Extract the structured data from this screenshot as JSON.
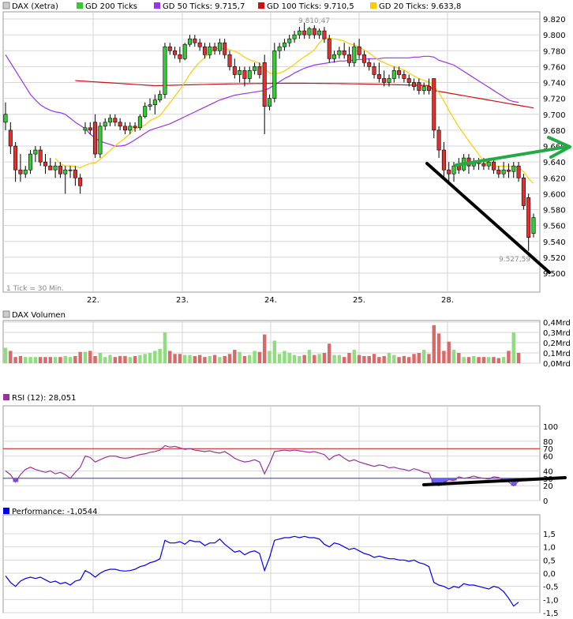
{
  "colors": {
    "up": "#33cc33",
    "down": "#e03030",
    "vol_up": "#90dd80",
    "vol_down": "#d86a6a",
    "gd200": "#33cc33",
    "gd50": "#9933ee",
    "gd100": "#cc1111",
    "gd20": "#ffcc00",
    "rsi_line": "#993399",
    "rsi_fill": "#6666ff",
    "perf_line": "#0000ee",
    "trend_green": "#22aa44",
    "trend_black": "#000000",
    "grid": "#d6d6d6"
  },
  "legend": [
    {
      "label": "DAX (Xetra)",
      "color": "#cccccc"
    },
    {
      "label": "GD 200 Ticks",
      "color": "#33cc33"
    },
    {
      "label": "GD 50 Ticks: 9.715,7",
      "color": "#9933ee"
    },
    {
      "label": "GD 100 Ticks: 9.710,5",
      "color": "#cc1111"
    },
    {
      "label": "GD 20 Ticks: 9.633,8",
      "color": "#ffcc00"
    }
  ],
  "notes": {
    "high_label": "9.810,47",
    "low_label": "9.527,59",
    "tick_note": "1 Tick = 30 Min."
  },
  "x_labels": [
    "22.",
    "23.",
    "24.",
    "25.",
    "28."
  ],
  "panels": {
    "volume": {
      "title": "DAX Volumen",
      "swatch": "#cccccc"
    },
    "rsi": {
      "title": "RSI (12): 28,051",
      "swatch": "#993399"
    },
    "perf": {
      "title": "Performance: -1,0544",
      "swatch": "#0000ee"
    }
  },
  "chart_data": [
    {
      "type": "candlestick",
      "title": "DAX (Xetra)",
      "yticks": [
        "9.820",
        "9.800",
        "9.780",
        "9.760",
        "9.740",
        "9.720",
        "9.700",
        "9.680",
        "9.660",
        "9.640",
        "9.620",
        "9.600",
        "9.580",
        "9.560",
        "9.540",
        "9.520",
        "9.500"
      ],
      "ylim": [
        9500,
        9830
      ],
      "x": [
        "22.",
        "23.",
        "24.",
        "25.",
        "28."
      ],
      "candles": [
        [
          9690,
          9715,
          9680,
          9700
        ],
        [
          9680,
          9690,
          9650,
          9660
        ],
        [
          9660,
          9665,
          9615,
          9630
        ],
        [
          9630,
          9650,
          9615,
          9625
        ],
        [
          9625,
          9635,
          9620,
          9630
        ],
        [
          9630,
          9655,
          9625,
          9650
        ],
        [
          9650,
          9660,
          9640,
          9655
        ],
        [
          9655,
          9660,
          9635,
          9640
        ],
        [
          9640,
          9650,
          9625,
          9635
        ],
        [
          9635,
          9645,
          9630,
          9630
        ],
        [
          9630,
          9640,
          9620,
          9635
        ],
        [
          9635,
          9640,
          9620,
          9625
        ],
        [
          9625,
          9635,
          9600,
          9630
        ],
        [
          9630,
          9635,
          9620,
          9630
        ],
        [
          9630,
          9635,
          9610,
          9620
        ],
        [
          9620,
          9625,
          9600,
          9610
        ],
        [
          9680,
          9690,
          9675,
          9683
        ],
        [
          9683,
          9690,
          9675,
          9680
        ],
        [
          9690,
          9700,
          9645,
          9650
        ],
        [
          9650,
          9690,
          9645,
          9685
        ],
        [
          9685,
          9695,
          9680,
          9690
        ],
        [
          9690,
          9700,
          9685,
          9695
        ],
        [
          9695,
          9700,
          9685,
          9690
        ],
        [
          9690,
          9695,
          9680,
          9685
        ],
        [
          9685,
          9690,
          9675,
          9680
        ],
        [
          9680,
          9690,
          9675,
          9685
        ],
        [
          9685,
          9690,
          9678,
          9683
        ],
        [
          9683,
          9700,
          9680,
          9697
        ],
        [
          9697,
          9715,
          9695,
          9710
        ],
        [
          9710,
          9720,
          9705,
          9712
        ],
        [
          9712,
          9725,
          9700,
          9718
        ],
        [
          9718,
          9730,
          9715,
          9725
        ],
        [
          9725,
          9790,
          9720,
          9785
        ],
        [
          9785,
          9790,
          9775,
          9780
        ],
        [
          9780,
          9785,
          9770,
          9775
        ],
        [
          9775,
          9785,
          9765,
          9770
        ],
        [
          9770,
          9790,
          9768,
          9788
        ],
        [
          9788,
          9800,
          9785,
          9795
        ],
        [
          9795,
          9800,
          9785,
          9790
        ],
        [
          9790,
          9795,
          9780,
          9785
        ],
        [
          9785,
          9790,
          9770,
          9775
        ],
        [
          9775,
          9790,
          9770,
          9785
        ],
        [
          9785,
          9790,
          9775,
          9780
        ],
        [
          9780,
          9795,
          9775,
          9790
        ],
        [
          9790,
          9795,
          9770,
          9775
        ],
        [
          9775,
          9780,
          9755,
          9760
        ],
        [
          9760,
          9770,
          9745,
          9750
        ],
        [
          9750,
          9760,
          9740,
          9755
        ],
        [
          9755,
          9760,
          9735,
          9745
        ],
        [
          9745,
          9760,
          9740,
          9755
        ],
        [
          9755,
          9765,
          9750,
          9760
        ],
        [
          9760,
          9765,
          9745,
          9750
        ],
        [
          9765,
          9775,
          9675,
          9710
        ],
        [
          9710,
          9725,
          9705,
          9720
        ],
        [
          9720,
          9790,
          9715,
          9780
        ],
        [
          9780,
          9790,
          9770,
          9785
        ],
        [
          9785,
          9795,
          9780,
          9790
        ],
        [
          9790,
          9800,
          9785,
          9795
        ],
        [
          9795,
          9805,
          9790,
          9800
        ],
        [
          9800,
          9810,
          9795,
          9805
        ],
        [
          9805,
          9815,
          9795,
          9800
        ],
        [
          9800,
          9810,
          9795,
          9808
        ],
        [
          9808,
          9812,
          9795,
          9800
        ],
        [
          9800,
          9808,
          9795,
          9805
        ],
        [
          9805,
          9810,
          9790,
          9795
        ],
        [
          9795,
          9800,
          9765,
          9770
        ],
        [
          9770,
          9780,
          9765,
          9775
        ],
        [
          9775,
          9785,
          9770,
          9780
        ],
        [
          9780,
          9790,
          9770,
          9775
        ],
        [
          9775,
          9785,
          9760,
          9765
        ],
        [
          9765,
          9790,
          9760,
          9785
        ],
        [
          9785,
          9795,
          9770,
          9775
        ],
        [
          9775,
          9780,
          9760,
          9765
        ],
        [
          9765,
          9770,
          9755,
          9760
        ],
        [
          9760,
          9765,
          9745,
          9750
        ],
        [
          9750,
          9765,
          9740,
          9745
        ],
        [
          9745,
          9755,
          9735,
          9740
        ],
        [
          9740,
          9750,
          9735,
          9745
        ],
        [
          9745,
          9760,
          9740,
          9755
        ],
        [
          9755,
          9760,
          9745,
          9750
        ],
        [
          9750,
          9755,
          9740,
          9745
        ],
        [
          9745,
          9750,
          9735,
          9740
        ],
        [
          9740,
          9745,
          9730,
          9735
        ],
        [
          9740,
          9745,
          9725,
          9730
        ],
        [
          9730,
          9740,
          9725,
          9735
        ],
        [
          9735,
          9745,
          9725,
          9730
        ],
        [
          9745,
          9745,
          9670,
          9680
        ],
        [
          9680,
          9685,
          9645,
          9655
        ],
        [
          9655,
          9665,
          9620,
          9630
        ],
        [
          9630,
          9640,
          9615,
          9625
        ],
        [
          9625,
          9640,
          9615,
          9635
        ],
        [
          9635,
          9645,
          9625,
          9630
        ],
        [
          9630,
          9650,
          9628,
          9645
        ],
        [
          9645,
          9650,
          9625,
          9635
        ],
        [
          9635,
          9645,
          9630,
          9640
        ],
        [
          9640,
          9645,
          9630,
          9638
        ],
        [
          9638,
          9645,
          9630,
          9635
        ],
        [
          9635,
          9645,
          9630,
          9640
        ],
        [
          9640,
          9645,
          9625,
          9630
        ],
        [
          9630,
          9635,
          9620,
          9625
        ],
        [
          9625,
          9640,
          9620,
          9630
        ],
        [
          9630,
          9638,
          9620,
          9628
        ],
        [
          9628,
          9640,
          9620,
          9635
        ],
        [
          9635,
          9640,
          9615,
          9620
        ],
        [
          9620,
          9625,
          9580,
          9585
        ],
        [
          9595,
          9600,
          9528,
          9545
        ],
        [
          9550,
          9575,
          9545,
          9570
        ]
      ]
    },
    {
      "type": "bar",
      "title": "DAX Volumen",
      "yticks": [
        "0,4Mrd",
        "0,3Mrd",
        "0,2Mrd",
        "0,1Mrd",
        "0,0Mrd"
      ],
      "ylim": [
        0,
        0.4
      ],
      "values": [
        0.15,
        0.12,
        0.06,
        0.07,
        0.06,
        0.06,
        0.06,
        0.06,
        0.06,
        0.06,
        0.06,
        0.06,
        0.07,
        0.06,
        0.07,
        0.11,
        0.11,
        0.12,
        0.07,
        0.1,
        0.06,
        0.08,
        0.06,
        0.07,
        0.07,
        0.06,
        0.07,
        0.08,
        0.09,
        0.1,
        0.12,
        0.14,
        0.3,
        0.12,
        0.09,
        0.09,
        0.08,
        0.08,
        0.07,
        0.08,
        0.06,
        0.07,
        0.08,
        0.06,
        0.07,
        0.09,
        0.13,
        0.11,
        0.07,
        0.08,
        0.12,
        0.11,
        0.28,
        0.12,
        0.22,
        0.09,
        0.12,
        0.1,
        0.08,
        0.07,
        0.08,
        0.13,
        0.08,
        0.09,
        0.1,
        0.19,
        0.08,
        0.08,
        0.06,
        0.1,
        0.13,
        0.08,
        0.07,
        0.07,
        0.09,
        0.06,
        0.07,
        0.1,
        0.08,
        0.06,
        0.07,
        0.06,
        0.09,
        0.1,
        0.13,
        0.09,
        0.37,
        0.29,
        0.12,
        0.21,
        0.13,
        0.1,
        0.06,
        0.06,
        0.07,
        0.06,
        0.06,
        0.06,
        0.06,
        0.05,
        0.06,
        0.12,
        0.3,
        0.1
      ]
    },
    {
      "type": "line",
      "title": "RSI (12): 28,051",
      "yticks": [
        "100",
        "80",
        "70",
        "60",
        "40",
        "30",
        "20",
        "0"
      ],
      "ylim": [
        0,
        100
      ],
      "values": [
        40,
        35,
        25,
        35,
        42,
        45,
        42,
        40,
        38,
        40,
        36,
        38,
        35,
        30,
        38,
        45,
        60,
        58,
        52,
        55,
        58,
        60,
        60,
        58,
        57,
        58,
        60,
        62,
        63,
        65,
        66,
        68,
        74,
        72,
        73,
        71,
        69,
        70,
        68,
        67,
        66,
        67,
        65,
        64,
        66,
        62,
        57,
        54,
        52,
        53,
        55,
        52,
        36,
        50,
        66,
        67,
        68,
        67,
        68,
        67,
        66,
        65,
        66,
        64,
        62,
        55,
        60,
        62,
        57,
        53,
        55,
        52,
        50,
        48,
        46,
        48,
        47,
        44,
        45,
        43,
        42,
        40,
        43,
        41,
        38,
        37,
        22,
        20,
        25,
        28,
        27,
        32,
        30,
        31,
        33,
        31,
        30,
        29,
        32,
        31,
        28,
        25,
        20,
        26
      ],
      "fill_below": 30
    },
    {
      "type": "line",
      "title": "Performance: -1,0544",
      "yticks": [
        "1,5",
        "1,0",
        "0,5",
        "0,0",
        "-0,5",
        "-1,0",
        "-1,5"
      ],
      "ylim": [
        -1.5,
        1.5
      ],
      "values": [
        -0.1,
        -0.35,
        -0.5,
        -0.3,
        -0.2,
        -0.15,
        -0.2,
        -0.15,
        -0.25,
        -0.35,
        -0.3,
        -0.4,
        -0.35,
        -0.45,
        -0.3,
        -0.25,
        0.1,
        0.0,
        -0.15,
        0.0,
        0.1,
        0.15,
        0.15,
        0.1,
        0.08,
        0.1,
        0.15,
        0.25,
        0.3,
        0.4,
        0.45,
        0.55,
        1.25,
        1.15,
        1.15,
        1.2,
        1.1,
        1.25,
        1.2,
        1.2,
        1.05,
        1.15,
        1.15,
        1.3,
        1.1,
        0.95,
        0.8,
        0.85,
        0.7,
        0.8,
        0.85,
        0.75,
        0.1,
        0.6,
        1.25,
        1.3,
        1.35,
        1.35,
        1.4,
        1.35,
        1.4,
        1.35,
        1.35,
        1.3,
        1.1,
        1.0,
        1.15,
        1.1,
        1.0,
        0.9,
        0.95,
        0.85,
        0.75,
        0.7,
        0.6,
        0.65,
        0.6,
        0.55,
        0.55,
        0.5,
        0.5,
        0.45,
        0.5,
        0.4,
        0.35,
        0.25,
        -0.35,
        -0.45,
        -0.5,
        -0.6,
        -0.5,
        -0.55,
        -0.4,
        -0.45,
        -0.45,
        -0.5,
        -0.55,
        -0.6,
        -0.5,
        -0.55,
        -0.7,
        -0.95,
        -1.25,
        -1.1
      ]
    }
  ],
  "moving_averages": {
    "gd50": [
      9775,
      9765,
      9755,
      9745,
      9735,
      9725,
      9718,
      9712,
      9708,
      9705,
      9703,
      9702,
      9700,
      9695,
      9690,
      9686,
      9682,
      9675,
      9670,
      9666,
      9664,
      9662,
      9660,
      9660,
      9661,
      9664,
      9668,
      9672,
      9676,
      9680,
      9682,
      9684,
      9686,
      9688,
      9691,
      9694,
      9697,
      9700,
      9703,
      9706,
      9709,
      9712,
      9715,
      9718,
      9720,
      9722,
      9724,
      9725,
      9726,
      9727,
      9728,
      9729,
      9730,
      9733,
      9737,
      9741,
      9745,
      9748,
      9752,
      9755,
      9758,
      9760,
      9762,
      9763,
      9764,
      9765,
      9766,
      9767,
      9767,
      9768,
      9768,
      9769,
      9769,
      9770,
      9770,
      9770,
      9771,
      9771,
      9771,
      9771,
      9771,
      9771,
      9772,
      9772,
      9773,
      9773,
      9772,
      9768,
      9766,
      9764,
      9762,
      9758,
      9754,
      9750,
      9746,
      9742,
      9738,
      9734,
      9730,
      9726,
      9722,
      9718,
      9716,
      9715
    ]
  }
}
